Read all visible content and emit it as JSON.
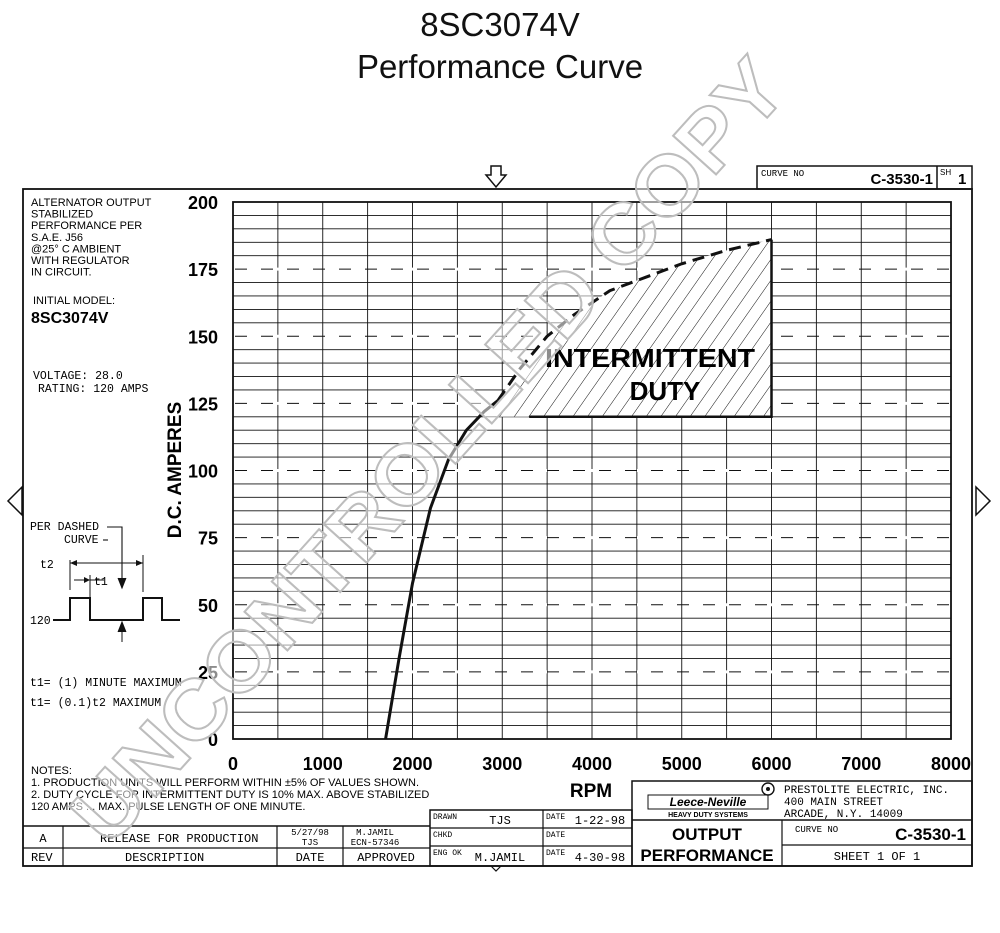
{
  "title": "8SC3074V",
  "subtitle": "Performance Curve",
  "watermark": "UNCONTROLLED COPY",
  "curve_box": {
    "label": "CURVE NO",
    "value": "C-3530-1",
    "sheet_label": "SH",
    "sheet_value": "1"
  },
  "left_notes": {
    "lines": [
      "ALTERNATOR OUTPUT",
      "STABILIZED",
      "PERFORMANCE PER",
      "S.A.E. J56",
      "@25° C AMBIENT",
      "WITH REGULATOR",
      "IN CIRCUIT."
    ],
    "initial_label": "INITIAL MODEL:",
    "model": "8SC3074V",
    "voltage": "VOLTAGE: 28.0",
    "rating": "RATING: 120 AMPS"
  },
  "duty_diagram": {
    "label1": "PER DASHED",
    "label2": "CURVE",
    "t2": "t2",
    "t1": "t1",
    "level": "120",
    "formula1": "t1= (1) MINUTE MAXIMUM",
    "formula2": "t1= (0.1)t2 MAXIMUM"
  },
  "notes": {
    "heading": "NOTES:",
    "lines": [
      "1. PRODUCTION UNITS WILL PERFORM WITHIN ±5% OF VALUES SHOWN.",
      "2. DUTY CYCLE FOR INTERMITTENT DUTY IS 10% MAX. ABOVE STABILIZED",
      "   120 AMPS ... MAX. PULSE LENGTH OF ONE MINUTE."
    ]
  },
  "revision_table": {
    "rev": "A",
    "description": "RELEASE FOR PRODUCTION",
    "date_top": "5/27/98",
    "date_bottom": "TJS",
    "approved_top": "M.JAMIL",
    "approved_bottom": "ECN-57346",
    "headers": [
      "REV",
      "DESCRIPTION",
      "DATE",
      "APPROVED"
    ]
  },
  "signoff": {
    "drawn_label": "DRAWN",
    "drawn": "TJS",
    "chkd_label": "CHKD",
    "chkd": "",
    "eng_label": "ENG OK",
    "eng": "M.JAMIL",
    "date_label": "DATE",
    "date1": "1-22-98",
    "date2": "",
    "date3": "4-30-98"
  },
  "company": {
    "logo": "Leece-Neville",
    "logo_sub": "HEAVY DUTY SYSTEMS",
    "name": "PRESTOLITE ELECTRIC, INC.",
    "street": "400 MAIN STREET",
    "city": "ARCADE, N.Y. 14009"
  },
  "title_block": {
    "line1": "OUTPUT",
    "line2": "PERFORMANCE",
    "curve_label": "CURVE NO",
    "curve_no": "C-3530-1",
    "sheet": "SHEET 1 OF 1"
  },
  "chart_data": {
    "type": "line",
    "title": "",
    "xlabel": "RPM",
    "ylabel": "D.C. AMPERES",
    "xlim": [
      0,
      8000
    ],
    "ylim": [
      0,
      200
    ],
    "x_ticks": [
      0,
      1000,
      2000,
      3000,
      4000,
      5000,
      6000,
      7000,
      8000
    ],
    "y_ticks": [
      0,
      25,
      50,
      75,
      100,
      125,
      150,
      175,
      200
    ],
    "grid": true,
    "series": [
      {
        "style": "solid",
        "x": [
          1700,
          1850,
          2000,
          2200,
          2400,
          2600,
          2800,
          2950
        ],
        "y": [
          0,
          30,
          58,
          86,
          104,
          115,
          122,
          126
        ]
      },
      {
        "style": "dashed",
        "x": [
          2950,
          3200,
          3500,
          3800,
          4200,
          4600,
          5000,
          5500,
          6000
        ],
        "y": [
          126,
          138,
          150,
          158,
          167,
          172,
          177,
          182,
          186
        ]
      }
    ],
    "region": {
      "label": "INTERMITTENT DUTY",
      "line1": "INTERMITTENT",
      "line2": "DUTY",
      "y_floor": 120,
      "x_right": 6000
    }
  }
}
